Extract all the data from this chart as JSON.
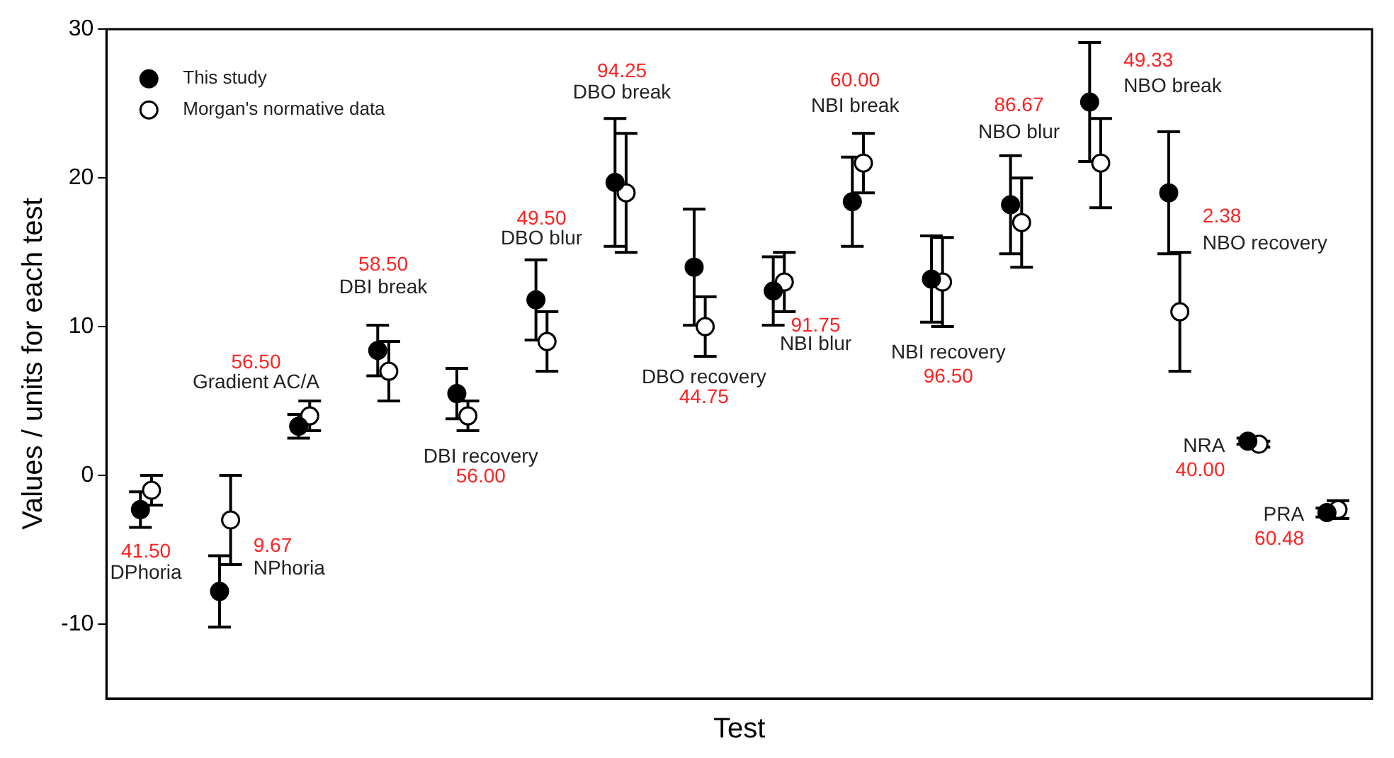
{
  "chart_data": {
    "type": "scatter",
    "xlabel": "Test",
    "ylabel": "Values / units for each test",
    "categories": [
      null,
      null,
      null,
      null,
      null,
      null,
      null,
      null,
      null,
      null,
      null,
      null,
      null,
      null,
      null,
      null
    ],
    "ylim": [
      -15,
      30
    ],
    "yticks": [
      -10,
      0,
      10,
      20,
      30
    ],
    "grid": false,
    "legend": "top left",
    "marker": "circle",
    "series": [
      {
        "name": "This study",
        "color": "#000000",
        "values": [
          -2.3,
          -7.8,
          3.3,
          8.4,
          5.5,
          11.8,
          19.7,
          14.0,
          12.4,
          18.4,
          13.2,
          18.2,
          25.1,
          19.0,
          2.3,
          -2.5
        ],
        "errors": [
          1.2,
          2.4,
          0.8,
          1.7,
          1.7,
          2.7,
          4.3,
          3.9,
          2.3,
          3.0,
          2.9,
          3.3,
          4.0,
          4.1,
          0.2,
          0.3
        ]
      },
      {
        "name": "Morgan's normative data",
        "color": "#ffffff",
        "values": [
          -1,
          -3,
          4,
          7,
          4,
          9,
          19,
          10,
          13,
          21,
          13,
          17,
          21,
          11,
          2.1,
          -2.3
        ],
        "errors": [
          1,
          3,
          1,
          2,
          1,
          2,
          4,
          2,
          2,
          2,
          3,
          3,
          3,
          4,
          0.2,
          0.6
        ]
      }
    ],
    "annotations": [
      "41.50",
      "DPhoria",
      "9.67",
      "NPhoria",
      "56.50",
      "Gradient AC/A",
      "58.50",
      "DBI break",
      "56.00",
      "DBI recovery",
      "49.50",
      "DBO blur",
      "94.25",
      "DBO break",
      "44.75",
      "DBO recovery",
      "91.75",
      "NBI blur",
      "60.00",
      "NBI break",
      "96.50",
      "NBI recovery",
      "86.67",
      "NBO blur",
      "49.33",
      "NBO break",
      "2.38",
      "NBO recovery",
      "40.00",
      "NRA",
      "60.48",
      "PRA"
    ]
  }
}
